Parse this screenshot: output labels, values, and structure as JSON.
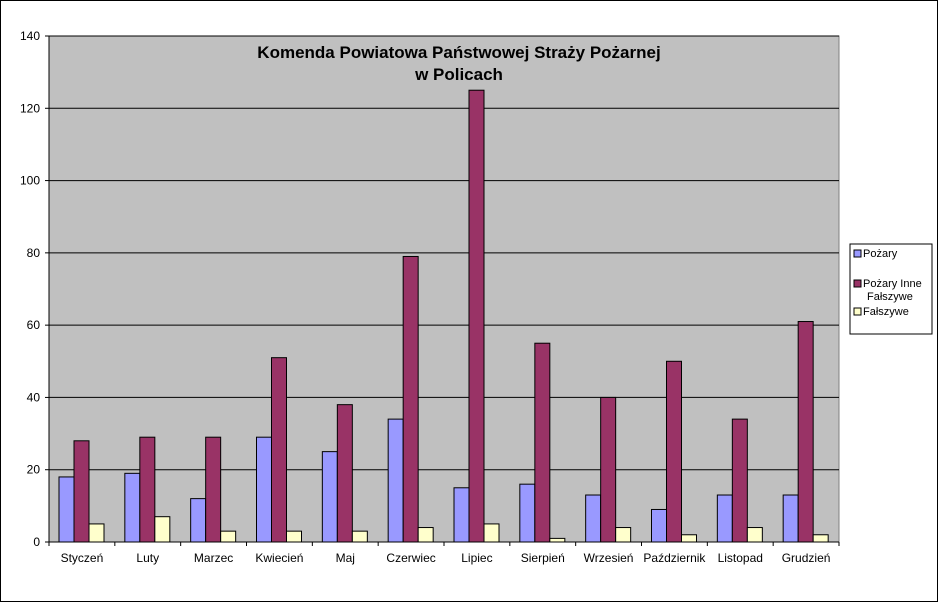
{
  "chart_data": {
    "type": "bar",
    "title_lines": [
      "Komenda Powiatowa Państwowej Straży Pożarnej",
      "w Policach"
    ],
    "xlabel": "",
    "ylabel": "",
    "ylim": [
      0,
      140
    ],
    "yticks": [
      0,
      20,
      40,
      60,
      80,
      100,
      120,
      140
    ],
    "grid": true,
    "legend_position": "right",
    "categories": [
      "Styczeń",
      "Luty",
      "Marzec",
      "Kwiecień",
      "Maj",
      "Czerwiec",
      "Lipiec",
      "Sierpień",
      "Wrzesień",
      "Październik",
      "Listopad",
      "Grudzień"
    ],
    "series": [
      {
        "name": "Pożary",
        "color": "#9999ff",
        "values": [
          18,
          19,
          12,
          29,
          25,
          34,
          15,
          16,
          13,
          9,
          13,
          13
        ]
      },
      {
        "name": "Pożary Inne Fałszywe",
        "legend_lines": [
          "Pożary Inne",
          "Fałszywe"
        ],
        "color": "#993366",
        "values": [
          28,
          29,
          29,
          51,
          38,
          79,
          125,
          55,
          40,
          50,
          34,
          61
        ]
      },
      {
        "name": "Fałszywe",
        "color": "#ffffcc",
        "values": [
          5,
          7,
          3,
          3,
          3,
          4,
          5,
          1,
          4,
          2,
          4,
          2
        ]
      }
    ],
    "colors": {
      "plot_background": "#c0c0c0",
      "gridline": "#000000"
    }
  }
}
